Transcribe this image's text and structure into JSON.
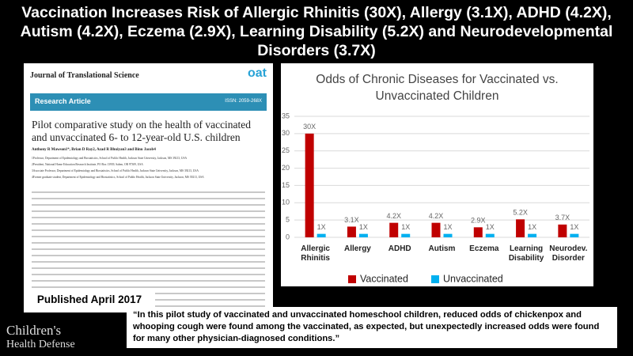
{
  "header": {
    "title": "Vaccination Increases Risk of Allergic Rhinitis (30X), Allergy (3.1X), ADHD (4.2X), Autism (4.2X), Eczema (2.9X), Learning Disability (5.2X) and Neurodevelopmental Disorders (3.7X)"
  },
  "paper": {
    "journal": "Journal of Translational Science",
    "publisher_logo": "oat",
    "section": "Research Article",
    "issn": "ISSN: 2059-268X",
    "title": "Pilot comparative study on the health of vaccinated and unvaccinated 6- to 12-year-old U.S. children",
    "authors": "Anthony R Mawson1*, Brian D Ray2, Azad R Bhuiyan3 and Binu Jacob4",
    "affiliations": [
      "1Professor, Department of Epidemiology and Biostatistics, School of Public Health, Jackson State University, Jackson, MS 39213, USA",
      "2President, National Home Education Research Institute, PO Box 13939, Salem, OR 97309, USA",
      "3Associate Professor, Department of Epidemiology and Biostatistics, School of Public Health, Jackson State University, Jackson, MS 39213, USA",
      "4Former graduate student, Department of Epidemiology and Biostatistics, School of Public Health, Jackson State University, Jackson, MS 39213, USA"
    ]
  },
  "published": "Published April 2017",
  "logo": {
    "line1": "Children's",
    "line2": "Health Defense"
  },
  "quote": "“In this pilot study of vaccinated and unvaccinated homeschool children, reduced odds of chickenpox and whooping cough were found among the vaccinated, as expected, but unexpectedly increased odds were found for many other physician-diagnosed  conditions.”",
  "chart_data": {
    "type": "bar",
    "title": "Odds of Chronic Diseases for Vaccinated vs. Unvaccinated Children",
    "categories": [
      "Allergic Rhinitis",
      "Allergy",
      "ADHD",
      "Autism",
      "Eczema",
      "Learning Disability",
      "Neurodev. Disorder"
    ],
    "series": [
      {
        "name": "Vaccinated",
        "color": "#c00000",
        "values": [
          30,
          3.1,
          4.2,
          4.2,
          2.9,
          5.2,
          3.7
        ],
        "value_labels": [
          "30X",
          "3.1X",
          "4.2X",
          "4.2X",
          "2.9X",
          "5.2X",
          "3.7X"
        ]
      },
      {
        "name": "Unvaccinated",
        "color": "#00b0f0",
        "values": [
          1,
          1,
          1,
          1,
          1,
          1,
          1
        ],
        "value_labels": [
          "1X",
          "1X",
          "1X",
          "1X",
          "1X",
          "1X",
          "1X"
        ]
      }
    ],
    "ylim": [
      0,
      35
    ],
    "yticks": [
      0,
      5,
      10,
      15,
      20,
      25,
      30,
      35
    ],
    "grid": true,
    "legend": "bottom"
  }
}
